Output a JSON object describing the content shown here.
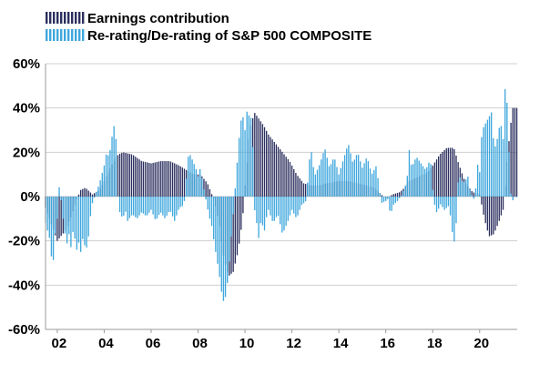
{
  "chart_data": {
    "type": "bar",
    "title": "",
    "xlabel": "",
    "ylabel": "",
    "ylim": [
      -60,
      60
    ],
    "y_ticks": [
      60,
      40,
      20,
      0,
      -20,
      -40,
      -60
    ],
    "y_tick_labels": [
      "60%",
      "40%",
      "20%",
      "0%",
      "-20%",
      "-40%",
      "-60%"
    ],
    "x_range": [
      2001.5,
      2021.6
    ],
    "x_ticks": [
      2002,
      2004,
      2006,
      2008,
      2010,
      2012,
      2014,
      2016,
      2018,
      2020
    ],
    "x_tick_labels": [
      "02",
      "04",
      "06",
      "08",
      "10",
      "12",
      "14",
      "16",
      "18",
      "20"
    ],
    "grid": "horizontal",
    "legend_position": "top-left",
    "stacked": false,
    "series": [
      {
        "name": "Earnings contribution",
        "color": "#2B2F5E",
        "points": [
          [
            2001.5,
            -5
          ],
          [
            2001.8,
            -14
          ],
          [
            2002.0,
            -20
          ],
          [
            2002.3,
            -16
          ],
          [
            2002.6,
            -9
          ],
          [
            2002.8,
            -2
          ],
          [
            2003.0,
            3
          ],
          [
            2003.2,
            4
          ],
          [
            2003.5,
            1
          ],
          [
            2003.8,
            3
          ],
          [
            2004.0,
            7
          ],
          [
            2004.3,
            14
          ],
          [
            2004.6,
            19
          ],
          [
            2004.8,
            20
          ],
          [
            2005.2,
            19
          ],
          [
            2005.6,
            16
          ],
          [
            2006.0,
            15
          ],
          [
            2006.4,
            16
          ],
          [
            2006.8,
            16
          ],
          [
            2007.2,
            14
          ],
          [
            2007.5,
            12
          ],
          [
            2007.8,
            10
          ],
          [
            2008.1,
            10
          ],
          [
            2008.4,
            6
          ],
          [
            2008.7,
            -2
          ],
          [
            2008.9,
            -12
          ],
          [
            2009.1,
            -28
          ],
          [
            2009.3,
            -36
          ],
          [
            2009.5,
            -34
          ],
          [
            2009.7,
            -25
          ],
          [
            2009.9,
            -10
          ],
          [
            2010.0,
            5
          ],
          [
            2010.2,
            30
          ],
          [
            2010.4,
            38
          ],
          [
            2010.6,
            35
          ],
          [
            2010.8,
            32
          ],
          [
            2011.0,
            28
          ],
          [
            2011.3,
            24
          ],
          [
            2011.6,
            20
          ],
          [
            2011.9,
            16
          ],
          [
            2012.2,
            10
          ],
          [
            2012.5,
            6
          ],
          [
            2012.8,
            5
          ],
          [
            2013.1,
            5
          ],
          [
            2013.5,
            6
          ],
          [
            2014.0,
            7
          ],
          [
            2014.4,
            7
          ],
          [
            2014.8,
            6
          ],
          [
            2015.2,
            5
          ],
          [
            2015.5,
            4
          ],
          [
            2015.8,
            1
          ],
          [
            2016.0,
            -1
          ],
          [
            2016.3,
            1
          ],
          [
            2016.6,
            2
          ],
          [
            2016.8,
            4
          ],
          [
            2017.0,
            7
          ],
          [
            2017.4,
            9
          ],
          [
            2017.8,
            11
          ],
          [
            2018.0,
            14
          ],
          [
            2018.3,
            19
          ],
          [
            2018.6,
            22
          ],
          [
            2018.9,
            22
          ],
          [
            2019.1,
            15
          ],
          [
            2019.4,
            6
          ],
          [
            2019.7,
            2
          ],
          [
            2020.0,
            1
          ],
          [
            2020.2,
            -10
          ],
          [
            2020.4,
            -18
          ],
          [
            2020.6,
            -17
          ],
          [
            2020.8,
            -12
          ],
          [
            2021.0,
            -6
          ],
          [
            2021.2,
            20
          ],
          [
            2021.4,
            40
          ],
          [
            2021.5,
            40
          ]
        ]
      },
      {
        "name": "Re-rating/De-rating of S&P 500 COMPOSITE",
        "color": "#3FA7DD",
        "points": [
          [
            2001.5,
            -12
          ],
          [
            2001.7,
            -20
          ],
          [
            2001.8,
            -34
          ],
          [
            2001.9,
            -18
          ],
          [
            2002.0,
            -10
          ],
          [
            2002.1,
            7
          ],
          [
            2002.2,
            -6
          ],
          [
            2002.3,
            -14
          ],
          [
            2002.4,
            -22
          ],
          [
            2002.5,
            -17
          ],
          [
            2002.6,
            -24
          ],
          [
            2002.7,
            -12
          ],
          [
            2002.8,
            -26
          ],
          [
            2002.9,
            -20
          ],
          [
            2003.0,
            -25
          ],
          [
            2003.1,
            -18
          ],
          [
            2003.2,
            -24
          ],
          [
            2003.3,
            -22
          ],
          [
            2003.4,
            -10
          ],
          [
            2003.5,
            -3
          ],
          [
            2003.6,
            0
          ],
          [
            2003.7,
            3
          ],
          [
            2003.8,
            6
          ],
          [
            2003.9,
            10
          ],
          [
            2004.0,
            14
          ],
          [
            2004.1,
            20
          ],
          [
            2004.2,
            18
          ],
          [
            2004.3,
            24
          ],
          [
            2004.4,
            33
          ],
          [
            2004.5,
            26
          ],
          [
            2004.6,
            -5
          ],
          [
            2004.7,
            -8
          ],
          [
            2004.8,
            -10
          ],
          [
            2004.9,
            -6
          ],
          [
            2005.0,
            -11
          ],
          [
            2005.2,
            -8
          ],
          [
            2005.4,
            -10
          ],
          [
            2005.6,
            -7
          ],
          [
            2005.8,
            -9
          ],
          [
            2006.0,
            -6
          ],
          [
            2006.2,
            -11
          ],
          [
            2006.4,
            -7
          ],
          [
            2006.6,
            -10
          ],
          [
            2006.8,
            -6
          ],
          [
            2007.0,
            -11
          ],
          [
            2007.2,
            -5
          ],
          [
            2007.4,
            -4
          ],
          [
            2007.6,
            20
          ],
          [
            2007.7,
            18
          ],
          [
            2007.9,
            13
          ],
          [
            2008.0,
            9
          ],
          [
            2008.1,
            13
          ],
          [
            2008.2,
            6
          ],
          [
            2008.4,
            -5
          ],
          [
            2008.5,
            -10
          ],
          [
            2008.6,
            -14
          ],
          [
            2008.7,
            -22
          ],
          [
            2008.8,
            -28
          ],
          [
            2008.9,
            -35
          ],
          [
            2009.0,
            -43
          ],
          [
            2009.1,
            -48
          ],
          [
            2009.2,
            -44
          ],
          [
            2009.3,
            -34
          ],
          [
            2009.4,
            -20
          ],
          [
            2009.5,
            -8
          ],
          [
            2009.6,
            6
          ],
          [
            2009.7,
            20
          ],
          [
            2009.8,
            33
          ],
          [
            2009.9,
            37
          ],
          [
            2010.0,
            30
          ],
          [
            2010.1,
            40
          ],
          [
            2010.2,
            35
          ],
          [
            2010.3,
            36
          ],
          [
            2010.4,
            -5
          ],
          [
            2010.5,
            -12
          ],
          [
            2010.6,
            -20
          ],
          [
            2010.7,
            -8
          ],
          [
            2010.8,
            -18
          ],
          [
            2010.9,
            -10
          ],
          [
            2011.0,
            -6
          ],
          [
            2011.2,
            -12
          ],
          [
            2011.4,
            -8
          ],
          [
            2011.6,
            -17
          ],
          [
            2011.8,
            -12
          ],
          [
            2012.0,
            -6
          ],
          [
            2012.2,
            -10
          ],
          [
            2012.4,
            -4
          ],
          [
            2012.6,
            -2
          ],
          [
            2012.8,
            23
          ],
          [
            2012.9,
            14
          ],
          [
            2013.0,
            10
          ],
          [
            2013.2,
            15
          ],
          [
            2013.4,
            22
          ],
          [
            2013.6,
            13
          ],
          [
            2013.8,
            18
          ],
          [
            2014.0,
            10
          ],
          [
            2014.2,
            17
          ],
          [
            2014.4,
            24
          ],
          [
            2014.6,
            15
          ],
          [
            2014.8,
            20
          ],
          [
            2015.0,
            13
          ],
          [
            2015.2,
            18
          ],
          [
            2015.4,
            10
          ],
          [
            2015.6,
            14
          ],
          [
            2015.8,
            -3
          ],
          [
            2016.0,
            -2
          ],
          [
            2016.1,
            -1
          ],
          [
            2016.2,
            -9
          ],
          [
            2016.3,
            -4
          ],
          [
            2016.5,
            -2
          ],
          [
            2016.7,
            1
          ],
          [
            2016.8,
            4
          ],
          [
            2016.9,
            7
          ],
          [
            2017.0,
            21
          ],
          [
            2017.1,
            13
          ],
          [
            2017.3,
            18
          ],
          [
            2017.5,
            15
          ],
          [
            2017.7,
            12
          ],
          [
            2017.9,
            17
          ],
          [
            2018.0,
            3
          ],
          [
            2018.1,
            -5
          ],
          [
            2018.2,
            -8
          ],
          [
            2018.3,
            -3
          ],
          [
            2018.5,
            -6
          ],
          [
            2018.7,
            -4
          ],
          [
            2018.9,
            -22
          ],
          [
            2019.0,
            -12
          ],
          [
            2019.1,
            10
          ],
          [
            2019.3,
            6
          ],
          [
            2019.5,
            9
          ],
          [
            2019.6,
            2
          ],
          [
            2019.8,
            -2
          ],
          [
            2019.9,
            15
          ],
          [
            2020.0,
            11
          ],
          [
            2020.1,
            30
          ],
          [
            2020.3,
            34
          ],
          [
            2020.5,
            38
          ],
          [
            2020.6,
            24
          ],
          [
            2020.7,
            22
          ],
          [
            2020.8,
            30
          ],
          [
            2020.9,
            33
          ],
          [
            2021.0,
            26
          ],
          [
            2021.1,
            53
          ],
          [
            2021.2,
            37
          ],
          [
            2021.3,
            3
          ],
          [
            2021.4,
            -2
          ],
          [
            2021.5,
            0
          ]
        ]
      }
    ]
  }
}
